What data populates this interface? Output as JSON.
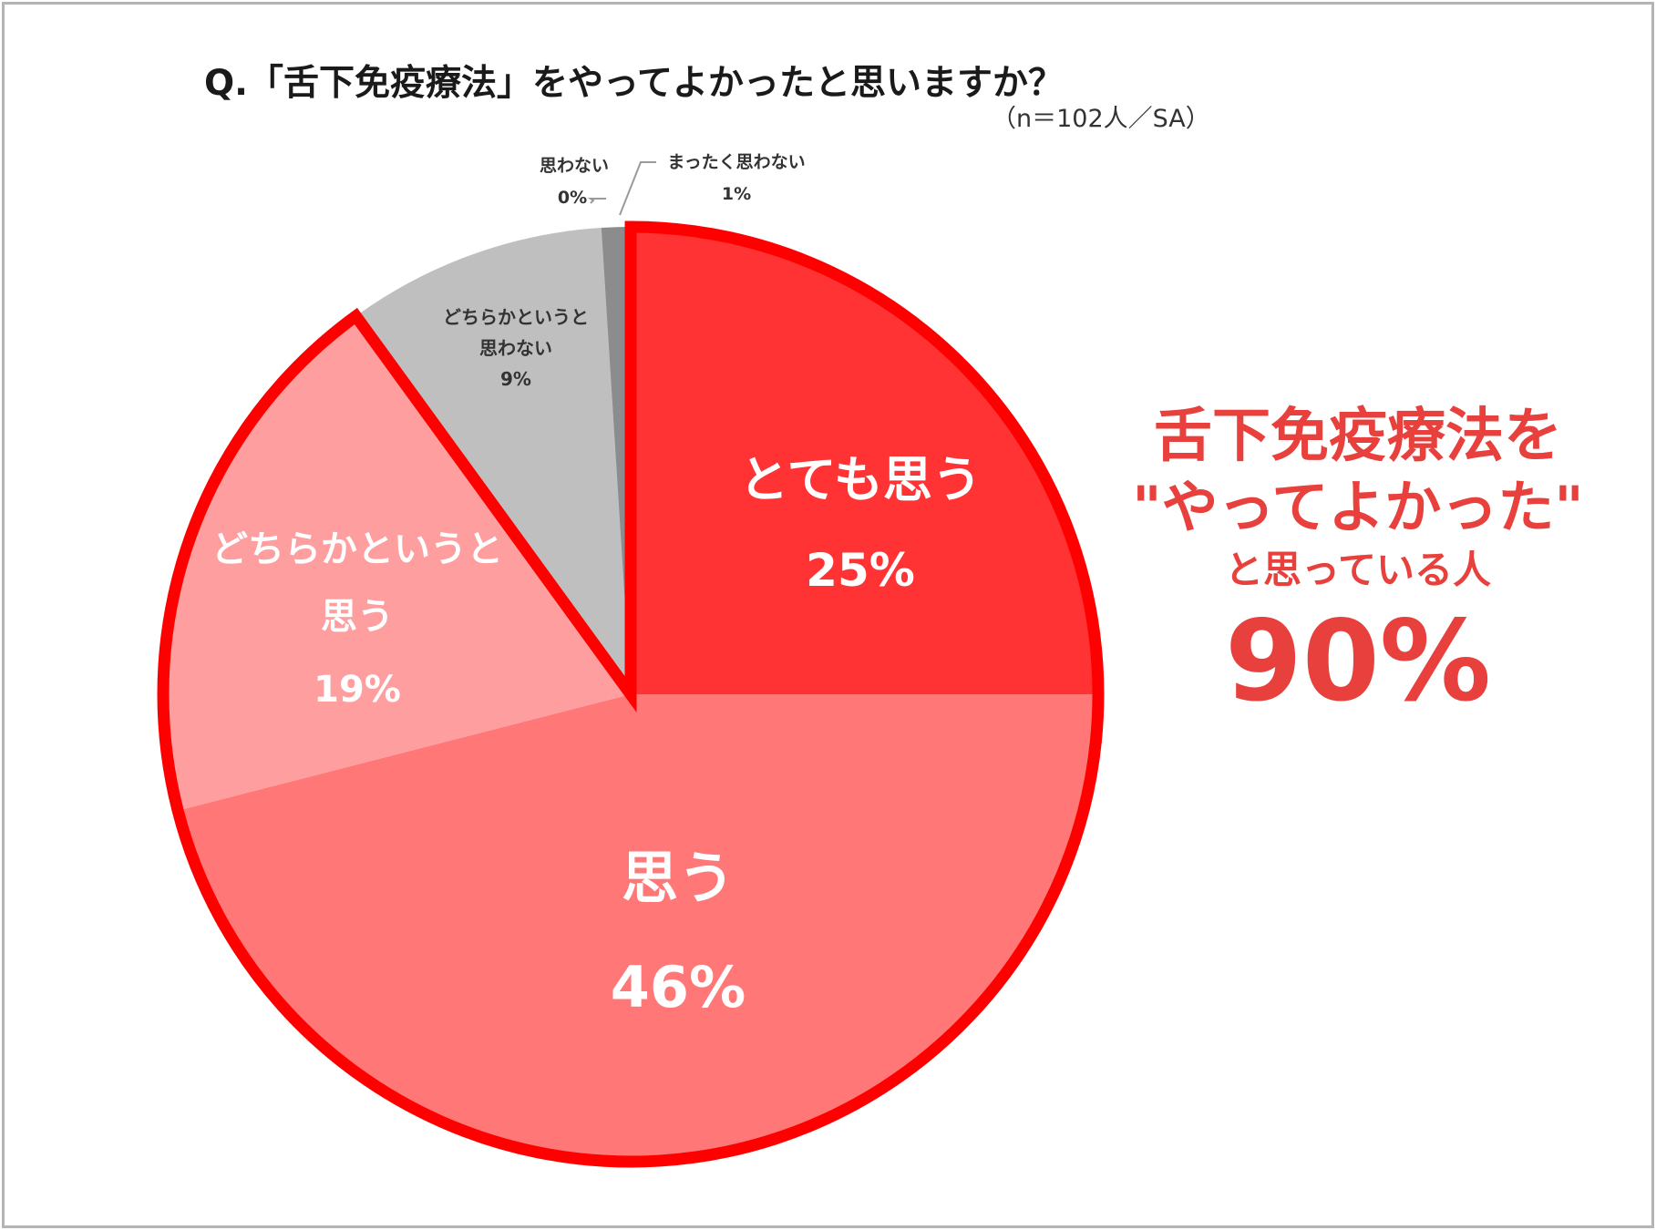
{
  "question_title": "Q.「舌下免疫療法」をやってよかったと思いますか？",
  "sample_note": "（n＝102人／SA）",
  "colors": {
    "very_agree": "#ff3333",
    "agree": "#ff7777",
    "somewhat_agree": "#ff9e9e",
    "somewhat_disagree": "#bfbfbf",
    "disagree": "#d9d9d9",
    "strongly_disagree": "#8c8c8c",
    "highlight_outline": "#ff0000",
    "callout_text": "#e8403c"
  },
  "chart_data": {
    "type": "pie",
    "title": "Q.「舌下免疫療法」をやってよかったと思いますか？",
    "start_angle": "12 o'clock, clockwise",
    "slices": [
      {
        "label": "とても思う",
        "value": 25,
        "value_label": "25%"
      },
      {
        "label": "思う",
        "value": 46,
        "value_label": "46%"
      },
      {
        "label": "どちらかというと思う",
        "value": 19,
        "value_label": "19%"
      },
      {
        "label": "どちらかというと思わない",
        "value": 9,
        "value_label": "9%"
      },
      {
        "label": "思わない",
        "value": 0,
        "value_label": "0%"
      },
      {
        "label": "まったく思わない",
        "value": 1,
        "value_label": "1%"
      }
    ],
    "highlighted_slices": [
      "とても思う",
      "思う",
      "どちらかというと思う"
    ]
  },
  "labels": {
    "very_agree_name": "とても思う",
    "very_agree_pct": "25%",
    "agree_name": "思う",
    "agree_pct": "46%",
    "somewhat_agree_line1": "どちらかというと",
    "somewhat_agree_line2": "思う",
    "somewhat_agree_pct": "19%",
    "somewhat_disagree_line1": "どちらかというと",
    "somewhat_disagree_line2": "思わない",
    "somewhat_disagree_pct": "9%",
    "disagree_name": "思わない",
    "disagree_pct": "0%",
    "strongly_disagree_name": "まったく思わない",
    "strongly_disagree_pct": "1%"
  },
  "callout": {
    "line1": "舌下免疫療法を",
    "line2": "\"やってよかった\"",
    "line3": "と思っている人",
    "value": "90%"
  }
}
